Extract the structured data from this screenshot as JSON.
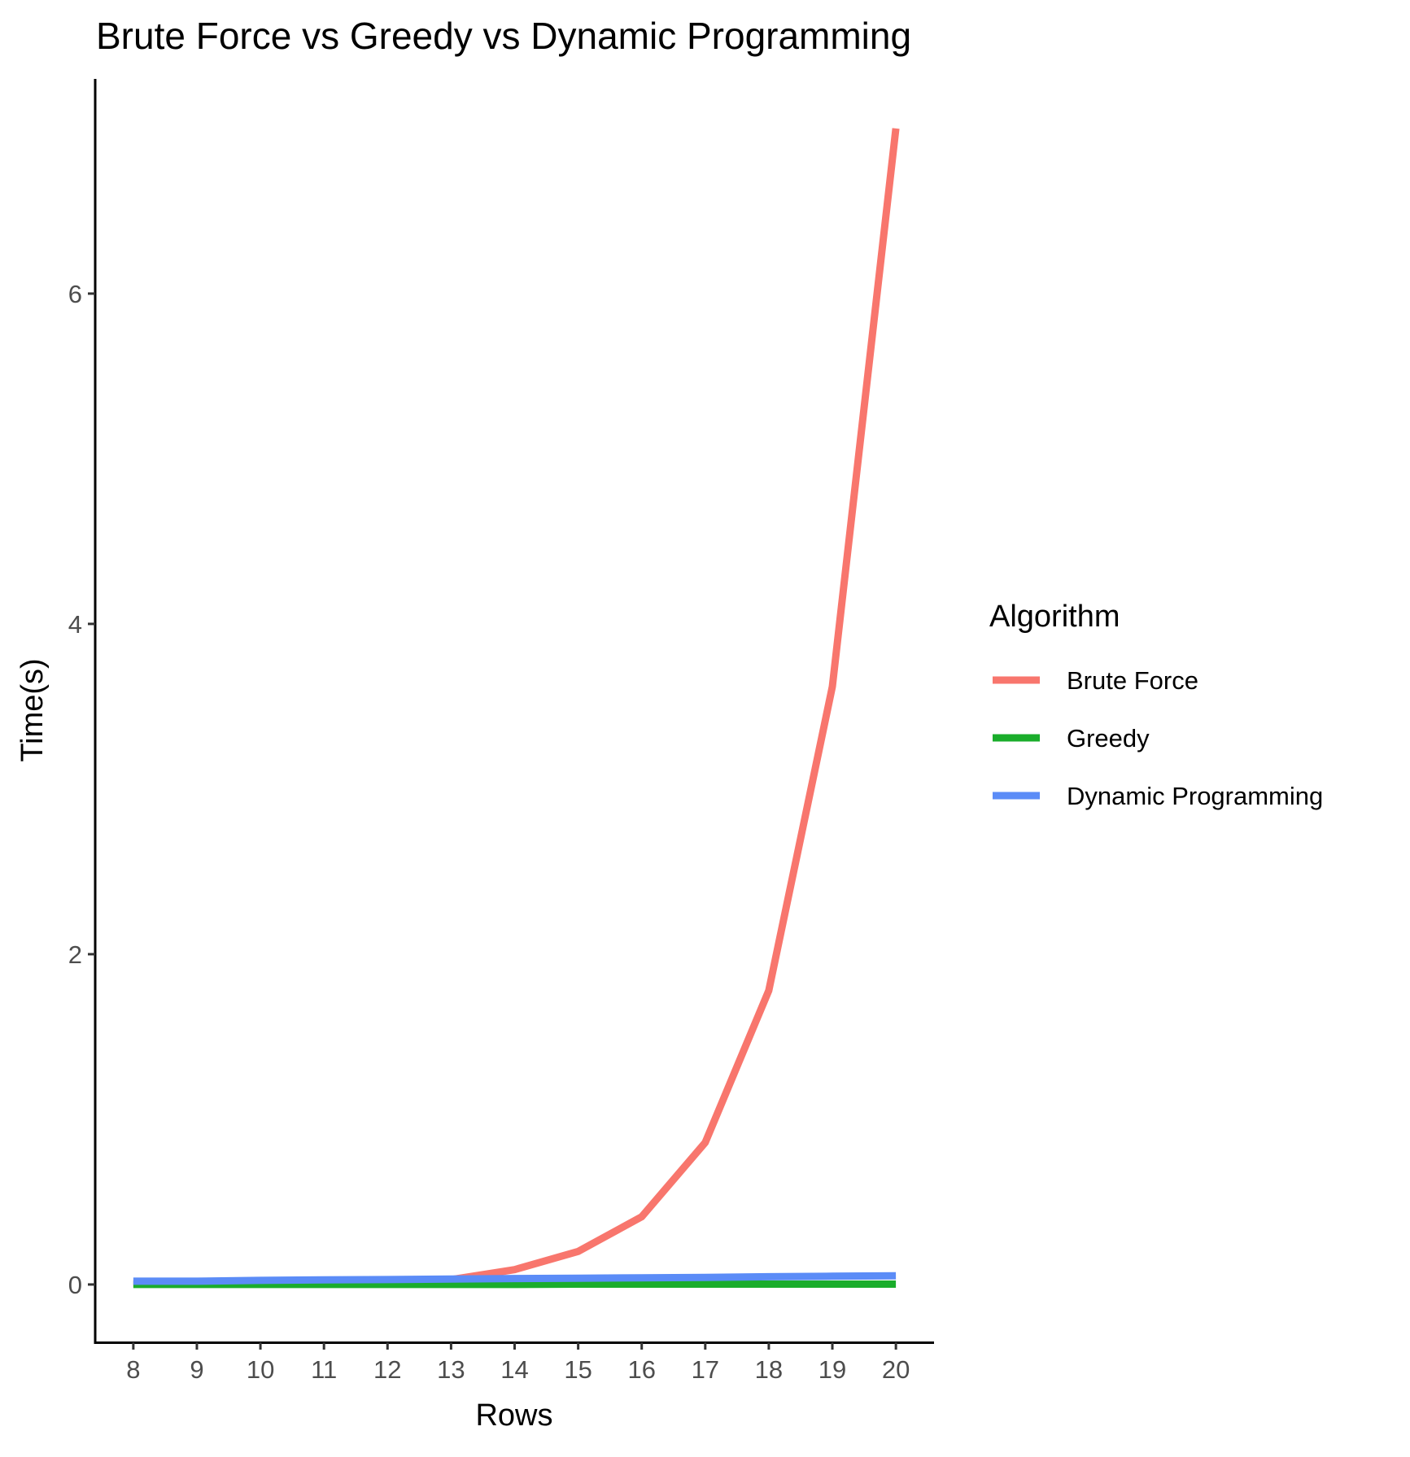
{
  "chart_data": {
    "type": "line",
    "title": "Brute Force vs Greedy vs Dynamic Programming",
    "xlabel": "Rows",
    "ylabel": "Time(s)",
    "x": [
      8,
      9,
      10,
      11,
      12,
      13,
      14,
      15,
      16,
      17,
      18,
      19,
      20
    ],
    "xlim": [
      7.4,
      20.6
    ],
    "ylim": [
      -0.35,
      7.3
    ],
    "yticks": [
      0,
      2,
      4,
      6
    ],
    "legend_title": "Algorithm",
    "legend_position": "right",
    "grid": false,
    "series": [
      {
        "name": "Brute Force",
        "color": "#f8766d",
        "values": [
          0.005,
          0.006,
          0.008,
          0.01,
          0.015,
          0.03,
          0.09,
          0.2,
          0.41,
          0.86,
          1.78,
          3.62,
          7.0
        ]
      },
      {
        "name": "Greedy",
        "color": "#1aad2b",
        "values": [
          0.0,
          0.0,
          0.0,
          0.0,
          0.0,
          0.0,
          0.0,
          0.002,
          0.002,
          0.002,
          0.002,
          0.002,
          0.002
        ]
      },
      {
        "name": "Dynamic Programming",
        "color": "#5b8cf7",
        "values": [
          0.02,
          0.02,
          0.025,
          0.028,
          0.03,
          0.033,
          0.036,
          0.038,
          0.04,
          0.043,
          0.047,
          0.05,
          0.053
        ]
      }
    ]
  }
}
